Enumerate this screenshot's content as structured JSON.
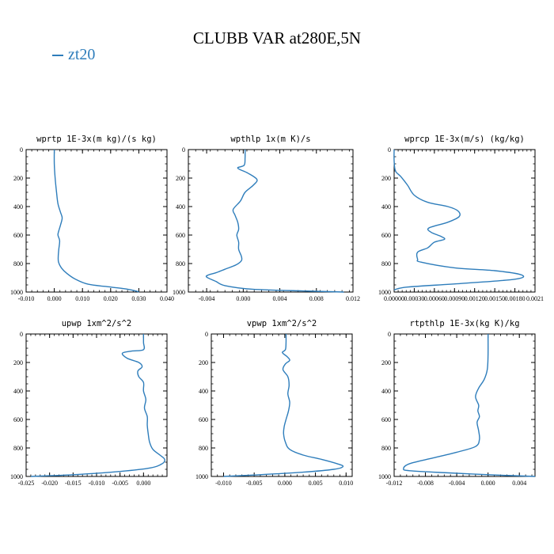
{
  "title": "CLUBB VAR at280E,5N",
  "legend": [
    {
      "label": "zt20",
      "color": "#2e7dbb"
    }
  ],
  "chart_data": [
    {
      "type": "line",
      "title": "wprtp   1E-3x(m kg)/(s kg)",
      "xlim": [
        -0.01,
        0.04
      ],
      "ylim": [
        0,
        1000
      ],
      "xticks": [
        "-0.010",
        "0.000",
        "0.010",
        "0.020",
        "0.030",
        "0.040"
      ],
      "xtick_values": [
        -0.01,
        0.0,
        0.01,
        0.02,
        0.03,
        0.04
      ],
      "yticks": [
        "0",
        "200",
        "400",
        "600",
        "800",
        "1000"
      ],
      "y_inverted": true,
      "series": [
        {
          "name": "zt20",
          "x": [
            0.0,
            0.0,
            0.0003,
            0.0008,
            0.0013,
            0.0022,
            0.0028,
            0.0022,
            0.0016,
            0.0013,
            0.0019,
            0.0016,
            0.0014,
            0.0015,
            0.0025,
            0.0045,
            0.0075,
            0.012,
            0.02,
            0.026,
            0.029,
            0.03
          ],
          "y": [
            0,
            100,
            200,
            300,
            380,
            440,
            480,
            530,
            570,
            600,
            640,
            700,
            750,
            790,
            830,
            870,
            910,
            945,
            965,
            980,
            993,
            1000
          ]
        }
      ]
    },
    {
      "type": "line",
      "title": "wpthlp   1x(m K)/s",
      "xlim": [
        -0.006,
        0.012
      ],
      "ylim": [
        0,
        1000
      ],
      "xticks": [
        "-0.004",
        "0.000",
        "0.004",
        "0.008",
        "0.012"
      ],
      "xtick_values": [
        -0.004,
        0.0,
        0.004,
        0.008,
        0.012
      ],
      "yticks": [
        "0",
        "200",
        "400",
        "600",
        "800",
        "1000"
      ],
      "y_inverted": true,
      "series": [
        {
          "name": "zt20",
          "x": [
            0.0002,
            0.0002,
            0.0001,
            -0.0006,
            0.0005,
            0.0015,
            0.0011,
            0.0002,
            -0.0003,
            -0.0011,
            -0.0009,
            -0.0006,
            -0.0005,
            -0.0007,
            -0.0005,
            -0.0005,
            -0.0002,
            -0.0002,
            -0.0008,
            -0.002,
            -0.003,
            -0.0038,
            -0.004,
            -0.003,
            -0.002,
            0.001,
            0.007,
            0.011
          ],
          "y": [
            0,
            60,
            110,
            130,
            165,
            210,
            250,
            300,
            360,
            420,
            460,
            510,
            560,
            600,
            650,
            700,
            750,
            780,
            810,
            840,
            865,
            880,
            895,
            925,
            955,
            980,
            993,
            1000
          ]
        }
      ]
    },
    {
      "type": "line",
      "title": "wprcp   1E-3x(m/s) (kg/kg)",
      "xlim": [
        0.0,
        0.0021
      ],
      "ylim": [
        0,
        1000
      ],
      "xticks": [
        "0.00000",
        "0.00030",
        "0.00060",
        "0.00090",
        "0.00120",
        "0.00150",
        "0.00180",
        "0.0021"
      ],
      "xtick_values": [
        0.0,
        0.0003,
        0.0006,
        0.0009,
        0.0012,
        0.0015,
        0.0018,
        0.0021
      ],
      "yticks": [
        "0",
        "200",
        "400",
        "600",
        "800",
        "1000"
      ],
      "y_inverted": true,
      "series": [
        {
          "name": "zt20",
          "x": [
            0.0,
            0.0,
            2e-05,
            0.0001,
            0.0002,
            0.0003,
            0.0005,
            0.0008,
            0.00095,
            0.00097,
            0.0008,
            0.00052,
            0.00055,
            0.0007,
            0.00075,
            0.0006,
            0.0005,
            0.00035,
            0.00035,
            0.0004,
            0.0009,
            0.0015,
            0.0019,
            0.0018,
            0.001,
            0.0002,
            0.0
          ],
          "y": [
            0,
            80,
            150,
            190,
            250,
            320,
            370,
            400,
            430,
            470,
            510,
            550,
            580,
            610,
            630,
            650,
            690,
            720,
            770,
            790,
            830,
            850,
            880,
            910,
            940,
            965,
            985
          ]
        }
      ]
    },
    {
      "type": "line",
      "title": "upwp   1xm^2/s^2",
      "xlim": [
        -0.025,
        0.005
      ],
      "ylim": [
        0,
        1000
      ],
      "xticks": [
        "-0.025",
        "-0.020",
        "-0.015",
        "-0.010",
        "-0.005",
        "0.000"
      ],
      "xtick_values": [
        -0.025,
        -0.02,
        -0.015,
        -0.01,
        -0.005,
        0.0
      ],
      "yticks": [
        "0",
        "200",
        "400",
        "600",
        "800",
        "1000"
      ],
      "y_inverted": true,
      "series": [
        {
          "name": "zt20",
          "x": [
            0.0,
            0.0,
            0.0,
            -0.0025,
            -0.0045,
            -0.0035,
            -0.001,
            -0.0003,
            -0.0012,
            -0.001,
            0.0,
            0.0,
            0.0005,
            0.0002,
            0.0008,
            0.0008,
            0.001,
            0.0013,
            0.002,
            0.0035,
            0.0045,
            0.004,
            0.0015,
            -0.005,
            -0.015,
            -0.024
          ],
          "y": [
            0,
            60,
            110,
            120,
            135,
            170,
            200,
            230,
            260,
            300,
            340,
            400,
            460,
            520,
            580,
            640,
            700,
            760,
            810,
            850,
            880,
            910,
            940,
            965,
            988,
            1000
          ]
        }
      ]
    },
    {
      "type": "line",
      "title": "vpwp   1xm^2/s^2",
      "xlim": [
        -0.012,
        0.011
      ],
      "ylim": [
        0,
        1000
      ],
      "xticks": [
        "-0.010",
        "-0.005",
        "0.000",
        "0.005",
        "0.010"
      ],
      "xtick_values": [
        -0.01,
        -0.005,
        0.0,
        0.005,
        0.01
      ],
      "yticks": [
        "0",
        "200",
        "400",
        "600",
        "800",
        "1000"
      ],
      "y_inverted": true,
      "series": [
        {
          "name": "zt20",
          "x": [
            0.0002,
            0.0002,
            0.0001,
            -0.0004,
            0.0004,
            0.0008,
            0.0001,
            -0.0003,
            0.0005,
            0.0007,
            0.0005,
            0.0008,
            0.0006,
            0.0002,
            -0.0001,
            -0.0002,
            0.0001,
            0.0008,
            0.003,
            0.006,
            0.0085,
            0.0095,
            0.008,
            0.003,
            -0.005,
            -0.01
          ],
          "y": [
            0,
            60,
            110,
            130,
            160,
            185,
            210,
            250,
            300,
            360,
            420,
            480,
            540,
            600,
            650,
            700,
            760,
            810,
            850,
            880,
            910,
            930,
            950,
            970,
            990,
            1000
          ]
        }
      ]
    },
    {
      "type": "line",
      "title": "rtpthlp   1E-3x(kg K)/kg",
      "xlim": [
        -0.012,
        0.006
      ],
      "ylim": [
        0,
        1000
      ],
      "xticks": [
        "-0.012",
        "-0.008",
        "-0.004",
        "0.000",
        "0.004"
      ],
      "xtick_values": [
        -0.012,
        -0.008,
        -0.004,
        0.0,
        0.004
      ],
      "yticks": [
        "0",
        "200",
        "400",
        "600",
        "800",
        "1000"
      ],
      "y_inverted": true,
      "series": [
        {
          "name": "zt20",
          "x": [
            0.0,
            0.0,
            -0.0001,
            -0.0005,
            -0.0012,
            -0.0016,
            -0.0012,
            -0.0013,
            -0.0011,
            -0.0014,
            -0.0012,
            -0.0011,
            -0.0016,
            -0.004,
            -0.007,
            -0.01,
            -0.0108,
            -0.01,
            -0.005,
            0.001,
            0.006
          ],
          "y": [
            0,
            150,
            250,
            320,
            380,
            440,
            500,
            540,
            580,
            620,
            680,
            740,
            790,
            830,
            870,
            910,
            945,
            960,
            975,
            990,
            1000
          ]
        }
      ]
    }
  ]
}
